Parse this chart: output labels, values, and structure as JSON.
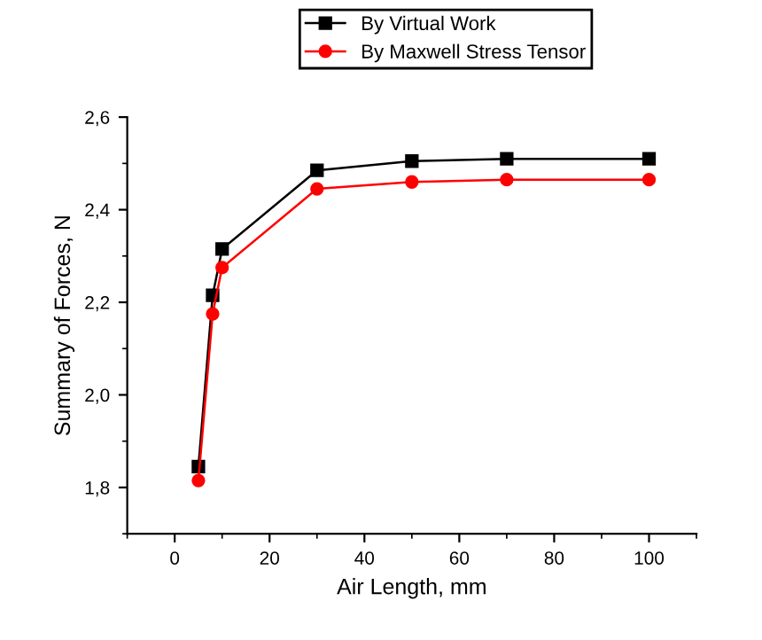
{
  "chart_data": {
    "type": "line",
    "xlabel": "Air Length, mm",
    "ylabel": "Summary of Forces, N",
    "x": [
      5,
      8,
      10,
      30,
      50,
      70,
      100
    ],
    "series": [
      {
        "name": "By Virtual Work",
        "color": "#000000",
        "marker": "square",
        "values": [
          1.845,
          2.215,
          2.315,
          2.485,
          2.505,
          2.51,
          2.51
        ]
      },
      {
        "name": "By Maxwell Stress Tensor",
        "color": "#ff0000",
        "marker": "circle",
        "values": [
          1.815,
          2.175,
          2.275,
          2.445,
          2.46,
          2.465,
          2.465
        ]
      }
    ],
    "xlim": [
      -10,
      110
    ],
    "xticks": [
      0,
      20,
      40,
      60,
      80,
      100
    ],
    "ylim": [
      1.7,
      2.6
    ],
    "yticks": [
      {
        "value": 1.8,
        "label": "1,8"
      },
      {
        "value": 2.0,
        "label": "2,0"
      },
      {
        "value": 2.2,
        "label": "2,2"
      },
      {
        "value": 2.4,
        "label": "2,4"
      },
      {
        "value": 2.6,
        "label": "2,6"
      }
    ],
    "grid": false,
    "legend": "top",
    "line_style": "solid"
  }
}
